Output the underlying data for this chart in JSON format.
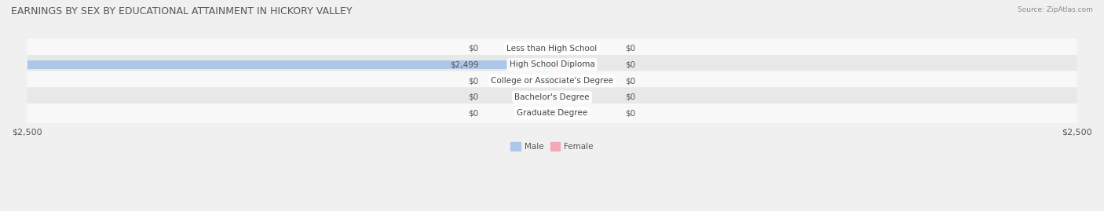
{
  "title": "EARNINGS BY SEX BY EDUCATIONAL ATTAINMENT IN HICKORY VALLEY",
  "source": "Source: ZipAtlas.com",
  "categories": [
    "Less than High School",
    "High School Diploma",
    "College or Associate's Degree",
    "Bachelor's Degree",
    "Graduate Degree"
  ],
  "male_values": [
    0,
    2499,
    0,
    0,
    0
  ],
  "female_values": [
    0,
    0,
    0,
    0,
    0
  ],
  "male_color": "#aec6e8",
  "female_color": "#f4a7b9",
  "bar_height": 0.55,
  "xlim": [
    -2500,
    2500
  ],
  "x_ticks": [
    -2500,
    2500
  ],
  "x_tick_labels": [
    "$2,500",
    "$2,500"
  ],
  "background_color": "#f0f0f0",
  "row_bg_light": "#e8e8e8",
  "row_bg_white": "#f8f8f8",
  "title_fontsize": 9,
  "label_fontsize": 7.5,
  "tick_fontsize": 8
}
